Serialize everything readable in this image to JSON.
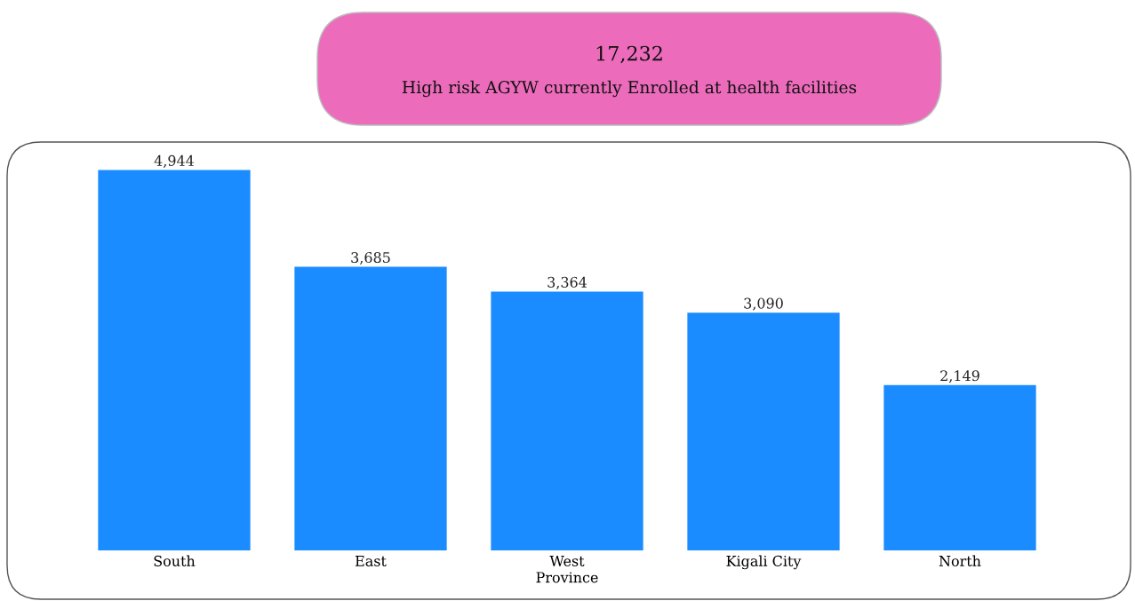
{
  "chart_data": {
    "type": "bar",
    "title": "17,232",
    "subtitle": "High risk AGYW currently Enrolled at health facilities",
    "xlabel": "Province",
    "categories": [
      "South",
      "East",
      "West",
      "Kigali City",
      "North"
    ],
    "values": [
      4944,
      3685,
      3364,
      3090,
      2149
    ],
    "color": "#1a8cff",
    "value_labels": [
      "4,944",
      "3,685",
      "3,364",
      "3,090",
      "2,149"
    ],
    "grid": false,
    "legend": false
  }
}
